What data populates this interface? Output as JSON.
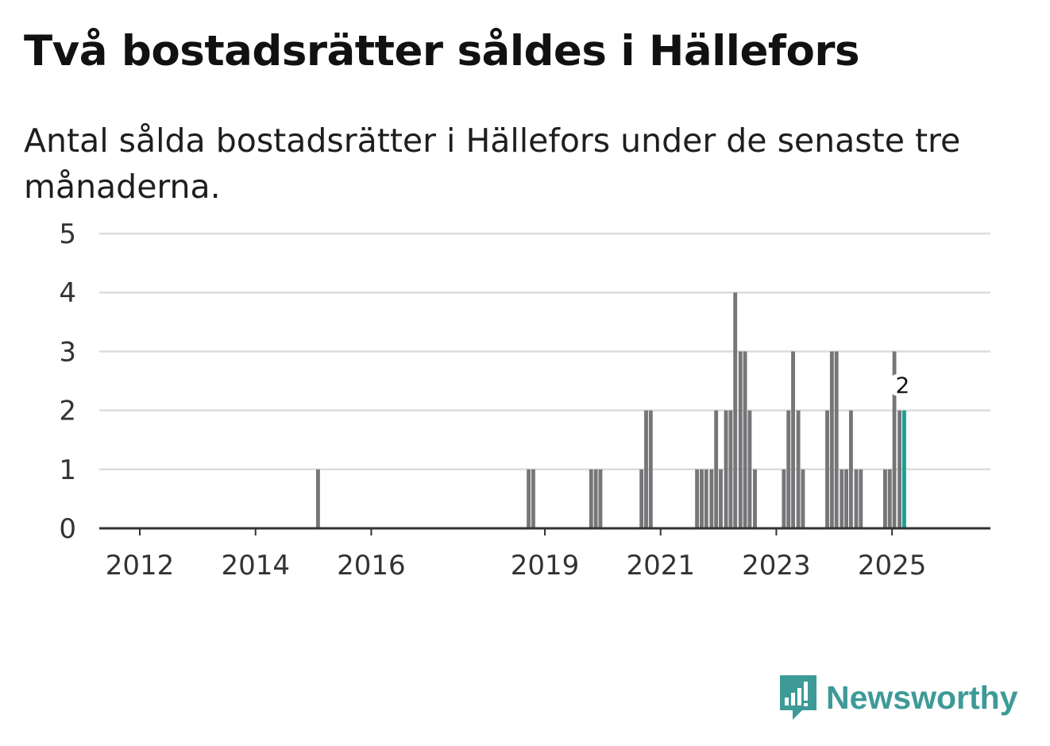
{
  "header": {
    "title": "Två bostadsrätter såldes i Hällefors",
    "subtitle": "Antal sålda bostadsrätter i Hällefors under de senaste tre månaderna."
  },
  "brand": {
    "name": "Newsworthy",
    "color": "#3d9a97"
  },
  "colors": {
    "bar": "#767679",
    "highlight": "#1e9e94",
    "grid": "#dcdcdc",
    "axis": "#333333"
  },
  "chart_data": {
    "type": "bar",
    "title": "Två bostadsrätter såldes i Hällefors",
    "subtitle": "Antal sålda bostadsrätter i Hällefors under de senaste tre månaderna.",
    "xlabel": "",
    "ylabel": "",
    "ylim": [
      0,
      5
    ],
    "xlim": [
      2011.3,
      2026.7
    ],
    "grid": true,
    "yticks": [
      0,
      1,
      2,
      3,
      4,
      5
    ],
    "xticks": [
      {
        "value": 2012,
        "label": "2012"
      },
      {
        "value": 2014,
        "label": "2014"
      },
      {
        "value": 2016,
        "label": "2016"
      },
      {
        "value": 2019,
        "label": "2019"
      },
      {
        "value": 2021,
        "label": "2021"
      },
      {
        "value": 2023,
        "label": "2023"
      },
      {
        "value": 2025,
        "label": "2025"
      }
    ],
    "bar_width_years": 0.0833,
    "series": [
      {
        "name": "Sålda bostadsrätter",
        "points": [
          {
            "x": 2015.08,
            "y": 1
          },
          {
            "x": 2018.72,
            "y": 1
          },
          {
            "x": 2018.8,
            "y": 1
          },
          {
            "x": 2019.8,
            "y": 1
          },
          {
            "x": 2019.88,
            "y": 1
          },
          {
            "x": 2019.96,
            "y": 1
          },
          {
            "x": 2020.67,
            "y": 1
          },
          {
            "x": 2020.75,
            "y": 2
          },
          {
            "x": 2020.83,
            "y": 2
          },
          {
            "x": 2021.63,
            "y": 1
          },
          {
            "x": 2021.71,
            "y": 1
          },
          {
            "x": 2021.79,
            "y": 1
          },
          {
            "x": 2021.88,
            "y": 1
          },
          {
            "x": 2021.96,
            "y": 2
          },
          {
            "x": 2022.04,
            "y": 1
          },
          {
            "x": 2022.13,
            "y": 2
          },
          {
            "x": 2022.21,
            "y": 2
          },
          {
            "x": 2022.29,
            "y": 4
          },
          {
            "x": 2022.38,
            "y": 3
          },
          {
            "x": 2022.46,
            "y": 3
          },
          {
            "x": 2022.54,
            "y": 2
          },
          {
            "x": 2022.63,
            "y": 1
          },
          {
            "x": 2023.13,
            "y": 1
          },
          {
            "x": 2023.21,
            "y": 2
          },
          {
            "x": 2023.29,
            "y": 3
          },
          {
            "x": 2023.38,
            "y": 2
          },
          {
            "x": 2023.46,
            "y": 1
          },
          {
            "x": 2023.88,
            "y": 2
          },
          {
            "x": 2023.96,
            "y": 3
          },
          {
            "x": 2024.04,
            "y": 3
          },
          {
            "x": 2024.13,
            "y": 1
          },
          {
            "x": 2024.21,
            "y": 1
          },
          {
            "x": 2024.29,
            "y": 2
          },
          {
            "x": 2024.38,
            "y": 1
          },
          {
            "x": 2024.46,
            "y": 1
          },
          {
            "x": 2024.88,
            "y": 1
          },
          {
            "x": 2024.96,
            "y": 1
          },
          {
            "x": 2025.04,
            "y": 3
          },
          {
            "x": 2025.13,
            "y": 2
          }
        ]
      }
    ],
    "highlight": {
      "x": 2025.21,
      "y": 2,
      "label": "2"
    }
  }
}
